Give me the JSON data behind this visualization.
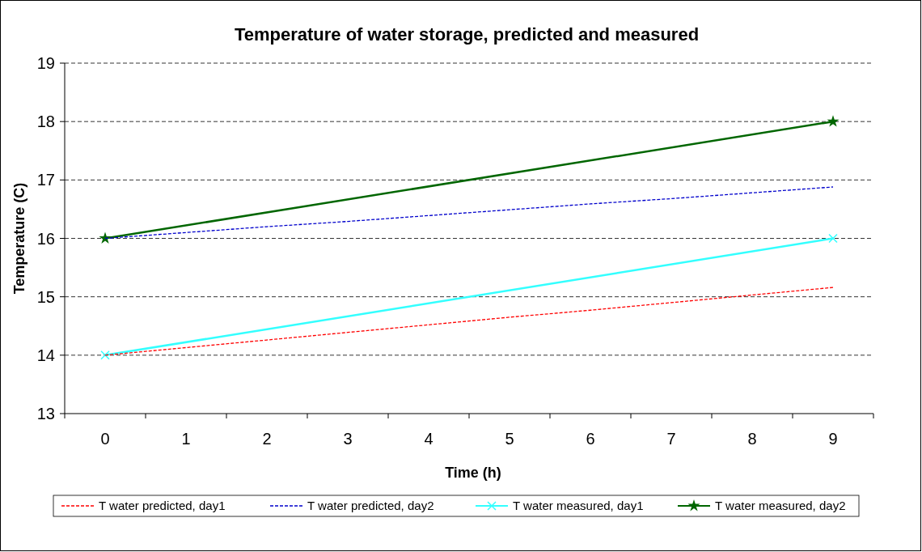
{
  "chart_data": {
    "type": "line",
    "title": "Temperature of water storage, predicted and measured",
    "xlabel": "Time (h)",
    "ylabel": "Temperature (C)",
    "categories": [
      "0",
      "1",
      "2",
      "3",
      "4",
      "5",
      "6",
      "7",
      "8",
      "9"
    ],
    "ylim": [
      13,
      19
    ],
    "yticks": [
      13,
      14,
      15,
      16,
      17,
      18,
      19
    ],
    "grid": "y",
    "legend": "bottom",
    "series": [
      {
        "name": "T water predicted, day1",
        "color": "#ff0000",
        "line_style": "dashed",
        "marker": "none",
        "values": [
          14.0,
          14.13,
          14.26,
          14.39,
          14.52,
          14.65,
          14.77,
          14.9,
          15.03,
          15.16
        ]
      },
      {
        "name": "T water predicted, day2",
        "color": "#0000cc",
        "line_style": "dashed",
        "marker": "none",
        "values": [
          16.0,
          16.1,
          16.2,
          16.29,
          16.39,
          16.49,
          16.59,
          16.68,
          16.78,
          16.88
        ]
      },
      {
        "name": "T water measured, day1",
        "color": "#33ffff",
        "line_style": "solid",
        "marker": "cross",
        "values": [
          14,
          null,
          null,
          null,
          null,
          null,
          null,
          null,
          null,
          16
        ]
      },
      {
        "name": "T water measured, day2",
        "color": "#006600",
        "line_style": "solid",
        "marker": "star",
        "values": [
          16,
          null,
          null,
          null,
          null,
          null,
          null,
          null,
          null,
          18
        ]
      }
    ]
  }
}
